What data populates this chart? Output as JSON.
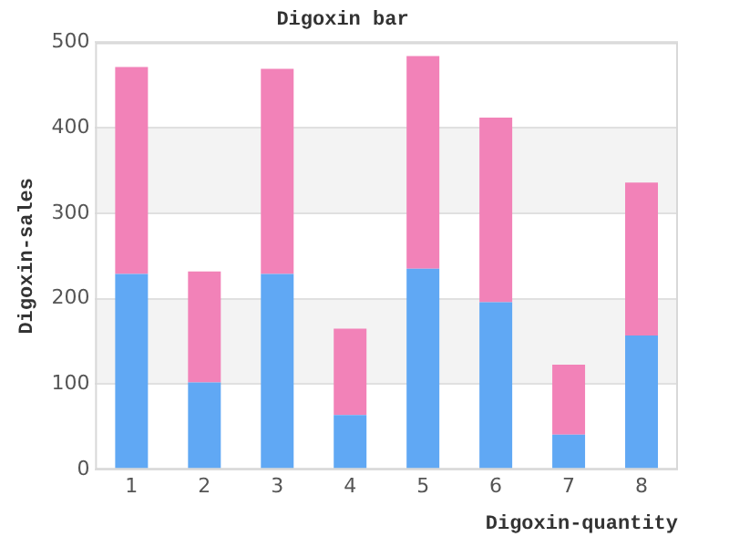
{
  "chart_data": {
    "type": "bar",
    "title": "Digoxin bar",
    "xlabel": "Digoxin-quantity",
    "ylabel": "Digoxin-sales",
    "categories": [
      "1",
      "2",
      "3",
      "4",
      "5",
      "6",
      "7",
      "8"
    ],
    "series": [
      {
        "color": "#60a8f4",
        "values": [
          229,
          102,
          229,
          64,
          235,
          196,
          41,
          157
        ]
      },
      {
        "color": "#f282b8",
        "values": [
          242,
          130,
          240,
          101,
          249,
          216,
          82,
          179
        ]
      }
    ],
    "stacked": true,
    "ylim": [
      0,
      500
    ],
    "yticks": [
      0,
      100,
      200,
      300,
      400,
      500
    ],
    "grid": "y"
  }
}
